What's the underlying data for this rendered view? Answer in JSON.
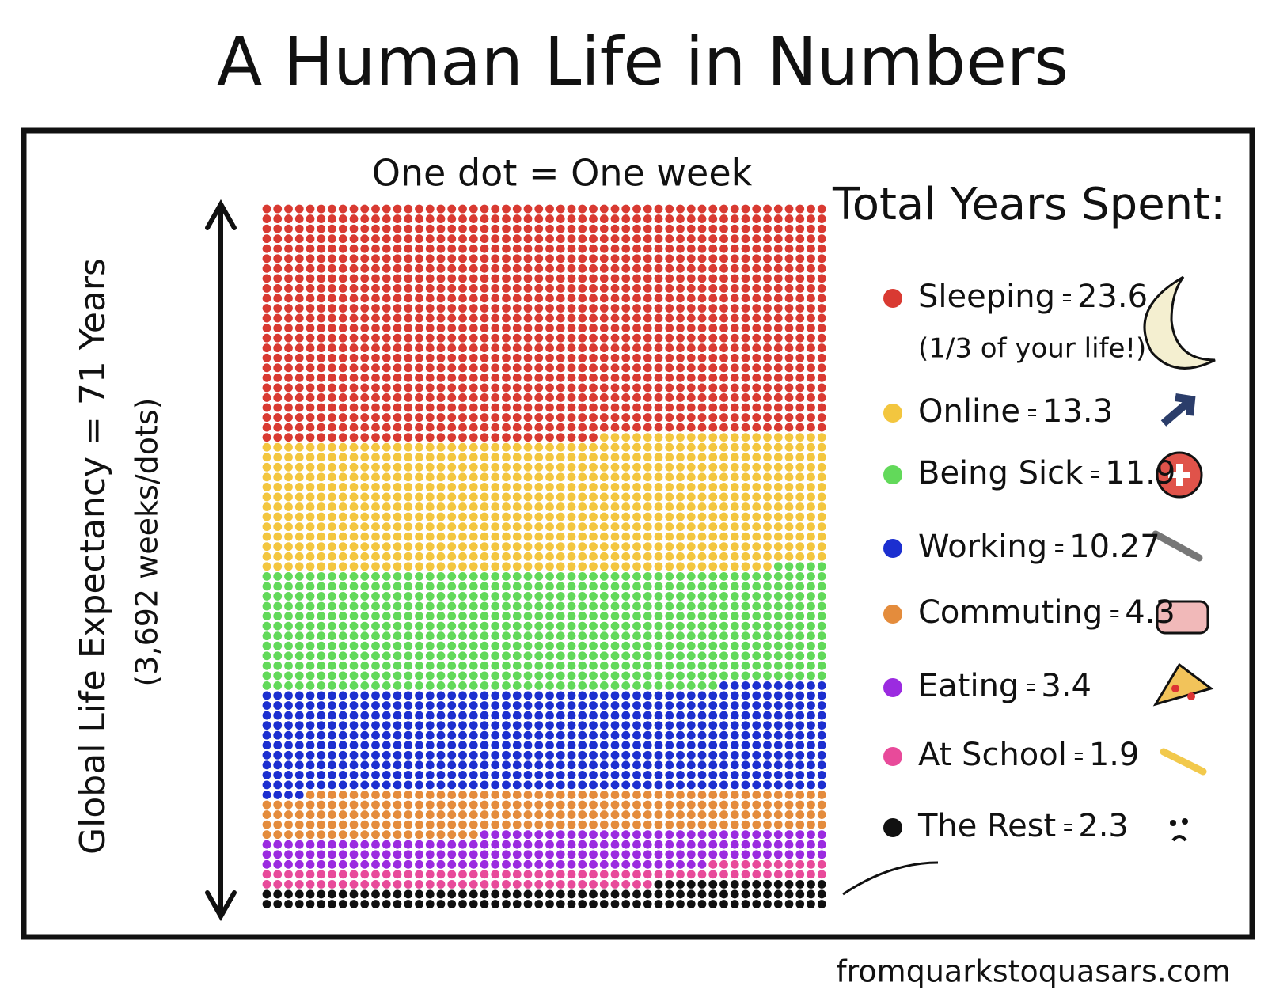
{
  "chart_data": {
    "type": "waffle",
    "title": "A Human Life in Numbers",
    "subtitle": "One dot = One week",
    "legend_title": "Total Years Spent:",
    "y_label": "Global Life Expectancy = 71 Years",
    "y_label_note": "(3,692 weeks/dots)",
    "annotation": "(1/3 of your life!)",
    "source": "fromquarkstoquasars.com",
    "series": [
      {
        "name": "Sleeping",
        "color": "#d93a32",
        "values": [
          23.6
        ]
      },
      {
        "name": "Online",
        "color": "#f3c63f",
        "values": [
          13.3
        ]
      },
      {
        "name": "Being Sick",
        "color": "#62d95a",
        "values": [
          11.9
        ]
      },
      {
        "name": "Working",
        "color": "#1c2fd0",
        "values": [
          10.27
        ]
      },
      {
        "name": "Commuting",
        "color": "#e48c3c",
        "values": [
          4.3
        ]
      },
      {
        "name": "Eating",
        "color": "#9b2be0",
        "values": [
          3.4
        ]
      },
      {
        "name": "At School",
        "color": "#e84a9a",
        "values": [
          1.9
        ]
      },
      {
        "name": "The Rest",
        "color": "#111111",
        "values": [
          2.3
        ]
      }
    ]
  }
}
